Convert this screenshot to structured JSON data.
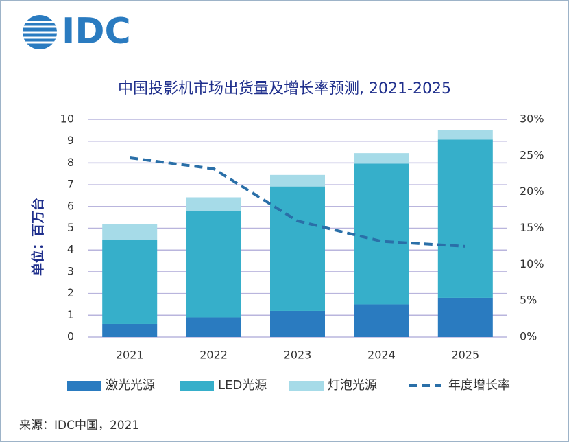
{
  "chart_data": {
    "type": "bar",
    "stacked": true,
    "logo": "IDC",
    "title": "中国投影机市场出货量及增长率预测, 2021-2025",
    "ylabel": "单位：百万台",
    "source": "来源：IDC中国，2021",
    "categories": [
      "2021",
      "2022",
      "2023",
      "2024",
      "2025"
    ],
    "series": [
      {
        "name": "激光光源",
        "color": "#2a7bc0",
        "values": [
          0.6,
          0.9,
          1.2,
          1.5,
          1.8
        ]
      },
      {
        "name": "LED光源",
        "color": "#36afca",
        "values": [
          3.85,
          4.88,
          5.72,
          6.47,
          7.27
        ]
      },
      {
        "name": "灯泡光源",
        "color": "#a6dbe8",
        "values": [
          0.75,
          0.64,
          0.53,
          0.48,
          0.45
        ]
      },
      {
        "name": "年度增长率",
        "color": "#2a6fa8",
        "type": "line",
        "dashed": true,
        "axis": "y2",
        "values": [
          24.7,
          23.2,
          16,
          13.2,
          12.5
        ]
      }
    ],
    "ylim": [
      0,
      10
    ],
    "yticks": [
      0,
      1,
      2,
      3,
      4,
      5,
      6,
      7,
      8,
      9,
      10
    ],
    "y2lim": [
      0,
      30
    ],
    "y2ticks": [
      {
        "value": 0,
        "label": "0%"
      },
      {
        "value": 5,
        "label": "5%"
      },
      {
        "value": 10,
        "label": "10%"
      },
      {
        "value": 15,
        "label": "15%"
      },
      {
        "value": 20,
        "label": "20%"
      },
      {
        "value": 25,
        "label": "25%"
      },
      {
        "value": 30,
        "label": "30%"
      }
    ],
    "grid": true
  }
}
